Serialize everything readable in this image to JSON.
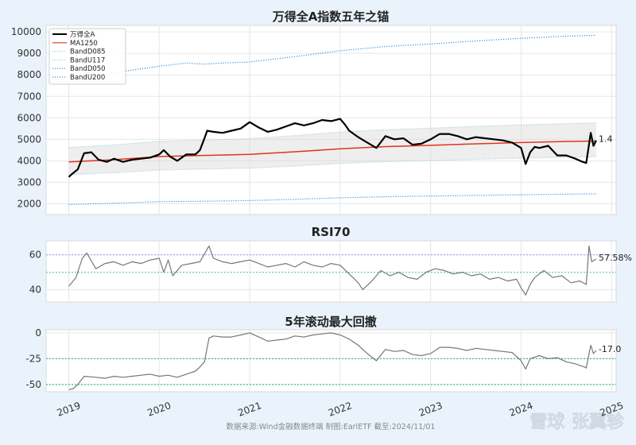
{
  "chart_data": [
    {
      "type": "line",
      "title": "万得全A指数五年之锚",
      "ylim": [
        1500,
        10300
      ],
      "yticks": [
        2000,
        3000,
        4000,
        5000,
        6000,
        7000,
        8000,
        9000,
        10000
      ],
      "legend": "top-left",
      "grid": true,
      "end_label": "1.4",
      "series": [
        {
          "name": "万得全A",
          "color": "#000000",
          "style": "solid",
          "x": [
            2019.0,
            2019.04,
            2019.1,
            2019.17,
            2019.25,
            2019.33,
            2019.42,
            2019.5,
            2019.6,
            2019.7,
            2019.8,
            2019.9,
            2020.0,
            2020.05,
            2020.12,
            2020.2,
            2020.25,
            2020.3,
            2020.4,
            2020.45,
            2020.5,
            2020.53,
            2020.6,
            2020.7,
            2020.8,
            2020.9,
            2021.0,
            2021.1,
            2021.2,
            2021.3,
            2021.4,
            2021.5,
            2021.6,
            2021.7,
            2021.8,
            2021.9,
            2022.0,
            2022.05,
            2022.1,
            2022.2,
            2022.3,
            2022.4,
            2022.5,
            2022.6,
            2022.7,
            2022.8,
            2022.9,
            2023.0,
            2023.1,
            2023.2,
            2023.3,
            2023.4,
            2023.5,
            2023.6,
            2023.7,
            2023.8,
            2023.9,
            2024.0,
            2024.05,
            2024.1,
            2024.15,
            2024.2,
            2024.3,
            2024.4,
            2024.5,
            2024.6,
            2024.68,
            2024.72,
            2024.77,
            2024.8,
            2024.83
          ],
          "y": [
            3250,
            3400,
            3600,
            4350,
            4400,
            4050,
            3950,
            4100,
            3950,
            4050,
            4100,
            4150,
            4300,
            4500,
            4200,
            4000,
            4150,
            4300,
            4300,
            4500,
            5050,
            5400,
            5350,
            5300,
            5400,
            5500,
            5800,
            5550,
            5350,
            5450,
            5600,
            5750,
            5650,
            5750,
            5900,
            5850,
            5950,
            5700,
            5400,
            5100,
            4850,
            4600,
            5150,
            5000,
            5050,
            4750,
            4800,
            5000,
            5250,
            5250,
            5150,
            5000,
            5100,
            5050,
            5000,
            4950,
            4850,
            4600,
            3850,
            4400,
            4650,
            4600,
            4700,
            4250,
            4250,
            4100,
            3950,
            3900,
            5300,
            4700,
            4950
          ]
        },
        {
          "name": "MA1250",
          "color": "#e0341c",
          "style": "solid",
          "x": [
            2019.0,
            2019.5,
            2020.0,
            2020.5,
            2021.0,
            2021.5,
            2022.0,
            2022.5,
            2023.0,
            2023.5,
            2024.0,
            2024.5,
            2024.83
          ],
          "y": [
            3950,
            4050,
            4200,
            4250,
            4300,
            4420,
            4560,
            4660,
            4720,
            4790,
            4850,
            4900,
            4920
          ]
        },
        {
          "name": "BandD085",
          "color": "#9fd3e8",
          "style": "dotted",
          "x": [
            2019.0,
            2019.5,
            2020.0,
            2020.5,
            2021.0,
            2021.5,
            2022.0,
            2022.5,
            2023.0,
            2023.5,
            2024.0,
            2024.5,
            2024.83
          ],
          "y": [
            3350,
            3450,
            3570,
            3620,
            3660,
            3760,
            3880,
            3960,
            4010,
            4070,
            4120,
            4170,
            4190
          ]
        },
        {
          "name": "BandU117",
          "color": "#9fd3e8",
          "style": "dotted",
          "x": [
            2019.0,
            2019.5,
            2020.0,
            2020.5,
            2021.0,
            2021.5,
            2022.0,
            2022.5,
            2023.0,
            2023.5,
            2024.0,
            2024.5,
            2024.83
          ],
          "y": [
            4620,
            4740,
            4910,
            4970,
            5030,
            5170,
            5340,
            5450,
            5520,
            5600,
            5670,
            5730,
            5760
          ]
        },
        {
          "name": "BandD050",
          "color": "#3a8fd6",
          "style": "dotted",
          "x": [
            2019.0,
            2019.5,
            2020.0,
            2020.5,
            2021.0,
            2021.5,
            2022.0,
            2022.5,
            2023.0,
            2023.5,
            2024.0,
            2024.5,
            2024.83
          ],
          "y": [
            1970,
            2030,
            2100,
            2120,
            2150,
            2210,
            2280,
            2330,
            2360,
            2390,
            2420,
            2450,
            2460
          ]
        },
        {
          "name": "BandU200",
          "color": "#3a8fd6",
          "style": "dotted",
          "x": [
            2019.0,
            2019.5,
            2020.0,
            2020.3,
            2020.5,
            2020.7,
            2021.0,
            2021.5,
            2022.0,
            2022.5,
            2023.0,
            2023.5,
            2024.0,
            2024.5,
            2024.83
          ],
          "y": [
            7900,
            8100,
            8400,
            8550,
            8500,
            8550,
            8600,
            8850,
            9120,
            9320,
            9440,
            9580,
            9700,
            9800,
            9840
          ]
        }
      ]
    },
    {
      "type": "line",
      "title": "RSI70",
      "ylim": [
        33,
        68
      ],
      "yticks": [
        40,
        60
      ],
      "hlines": [
        {
          "y": 60,
          "color": "#9fb3e8"
        },
        {
          "y": 50,
          "color": "#5fd0b0"
        }
      ],
      "end_label": "57.58%",
      "series": [
        {
          "name": "",
          "color": "#777777",
          "style": "solid",
          "x": [
            2019.0,
            2019.08,
            2019.15,
            2019.2,
            2019.3,
            2019.4,
            2019.5,
            2019.6,
            2019.7,
            2019.8,
            2019.9,
            2020.0,
            2020.05,
            2020.1,
            2020.15,
            2020.25,
            2020.35,
            2020.45,
            2020.55,
            2020.6,
            2020.7,
            2020.8,
            2020.9,
            2021.0,
            2021.1,
            2021.2,
            2021.3,
            2021.4,
            2021.5,
            2021.6,
            2021.7,
            2021.8,
            2021.9,
            2022.0,
            2022.1,
            2022.2,
            2022.25,
            2022.35,
            2022.45,
            2022.55,
            2022.65,
            2022.75,
            2022.85,
            2022.95,
            2023.05,
            2023.15,
            2023.25,
            2023.35,
            2023.45,
            2023.55,
            2023.65,
            2023.75,
            2023.85,
            2023.95,
            2024.0,
            2024.05,
            2024.1,
            2024.15,
            2024.25,
            2024.35,
            2024.45,
            2024.55,
            2024.65,
            2024.72,
            2024.75,
            2024.78,
            2024.83
          ],
          "y": [
            42,
            47,
            58,
            61,
            52,
            55,
            56,
            54,
            56,
            55,
            57,
            58,
            50,
            57,
            48,
            54,
            55,
            56,
            65,
            58,
            56,
            55,
            56,
            57,
            55,
            53,
            54,
            55,
            53,
            56,
            54,
            53,
            55,
            54,
            49,
            44,
            40,
            45,
            51,
            48,
            50,
            47,
            46,
            50,
            52,
            51,
            49,
            50,
            48,
            49,
            46,
            47,
            45,
            46,
            41,
            37,
            43,
            47,
            51,
            47,
            48,
            44,
            45,
            43,
            65,
            56,
            57.58
          ]
        }
      ]
    },
    {
      "type": "line",
      "title": "5年滚动最大回撤",
      "ylim": [
        -57,
        3
      ],
      "yticks": [
        0,
        -25,
        -50
      ],
      "hlines": [
        {
          "y": -25,
          "color": "#3ec09a"
        },
        {
          "y": -50,
          "color": "#3ec09a"
        }
      ],
      "end_label": "-17.0",
      "xticks": [
        "2019",
        "2020",
        "2021",
        "2022",
        "2023",
        "2024",
        "2025"
      ],
      "xlim": [
        2018.75,
        2025.05
      ],
      "series": [
        {
          "name": "",
          "color": "#777777",
          "style": "solid",
          "x": [
            2019.0,
            2019.05,
            2019.1,
            2019.17,
            2019.3,
            2019.4,
            2019.5,
            2019.6,
            2019.7,
            2019.8,
            2019.9,
            2020.0,
            2020.1,
            2020.2,
            2020.3,
            2020.4,
            2020.45,
            2020.5,
            2020.55,
            2020.6,
            2020.7,
            2020.8,
            2020.9,
            2021.0,
            2021.1,
            2021.2,
            2021.3,
            2021.4,
            2021.5,
            2021.6,
            2021.7,
            2021.8,
            2021.9,
            2022.0,
            2022.1,
            2022.2,
            2022.3,
            2022.4,
            2022.5,
            2022.6,
            2022.7,
            2022.8,
            2022.9,
            2023.0,
            2023.1,
            2023.2,
            2023.3,
            2023.4,
            2023.5,
            2023.6,
            2023.7,
            2023.8,
            2023.9,
            2024.0,
            2024.05,
            2024.1,
            2024.2,
            2024.3,
            2024.4,
            2024.5,
            2024.6,
            2024.7,
            2024.72,
            2024.77,
            2024.8,
            2024.83
          ],
          "y": [
            -55,
            -54,
            -50,
            -42,
            -43,
            -44,
            -42,
            -43,
            -42,
            -41,
            -40,
            -42,
            -41,
            -43,
            -40,
            -37,
            -33,
            -28,
            -5,
            -3,
            -4,
            -4,
            -2,
            0,
            -4,
            -8,
            -7,
            -6,
            -3,
            -4,
            -2,
            -1,
            0,
            -2,
            -6,
            -12,
            -20,
            -27,
            -16,
            -18,
            -17,
            -21,
            -22,
            -20,
            -14,
            -14,
            -15,
            -17,
            -15,
            -16,
            -17,
            -18,
            -19,
            -27,
            -35,
            -25,
            -22,
            -25,
            -24,
            -28,
            -30,
            -33,
            -34,
            -12,
            -20,
            -17.0
          ]
        }
      ]
    }
  ],
  "footer": {
    "source": "数据来源:Wind金融数据终端 制图:EarlETF 截至:2024/11/01",
    "watermark": "雪球:张翼轸"
  }
}
